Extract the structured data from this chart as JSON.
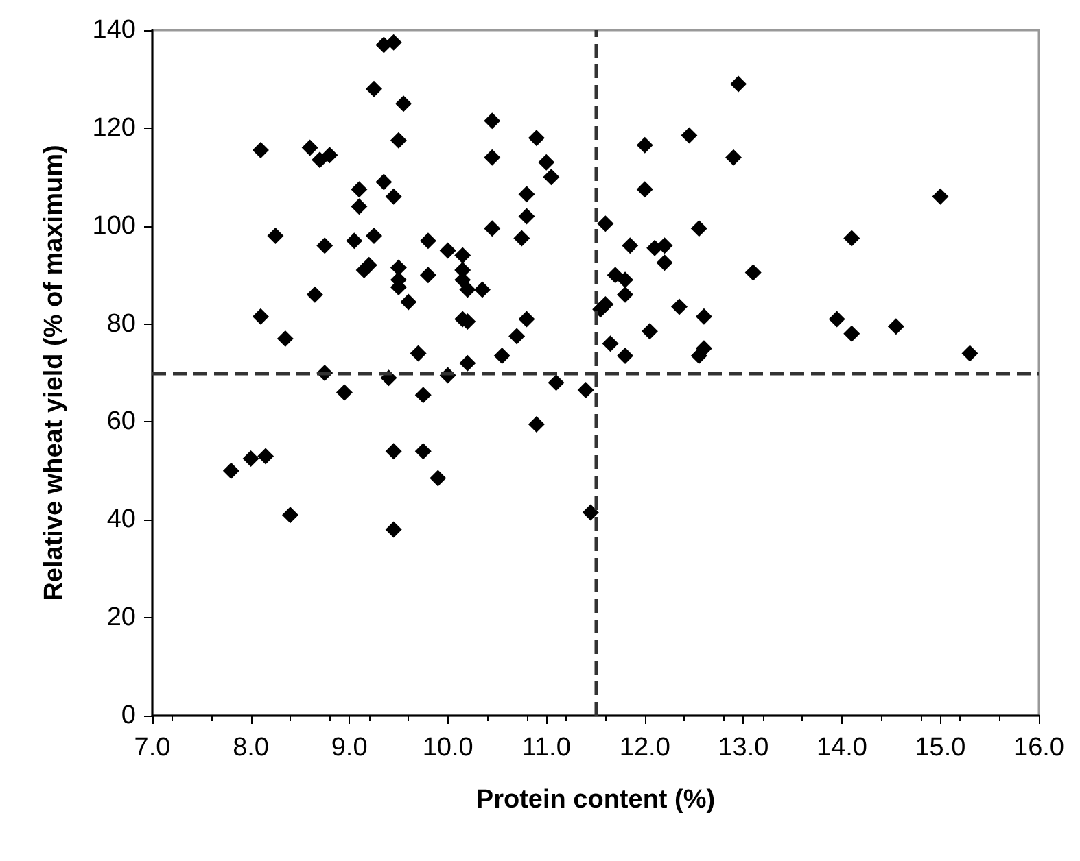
{
  "chart_data": {
    "type": "scatter",
    "xlabel": "Protein content (%)",
    "ylabel": "Relative wheat yield (% of maximum)",
    "x": [
      7.8,
      8.0,
      8.15,
      8.4,
      8.1,
      8.1,
      8.25,
      8.35,
      8.6,
      8.7,
      8.8,
      8.65,
      8.75,
      8.75,
      8.95,
      9.05,
      9.1,
      9.1,
      9.15,
      9.2,
      9.25,
      9.25,
      9.35,
      9.45,
      9.35,
      9.45,
      9.5,
      9.55,
      9.5,
      9.5,
      9.5,
      9.6,
      9.4,
      9.45,
      9.45,
      9.75,
      9.75,
      9.9,
      9.7,
      9.8,
      9.8,
      10.0,
      10.0,
      10.15,
      10.15,
      10.15,
      10.2,
      10.15,
      10.2,
      10.2,
      10.35,
      10.45,
      10.45,
      10.45,
      10.55,
      10.7,
      10.75,
      10.8,
      10.8,
      10.8,
      10.9,
      11.0,
      11.05,
      10.9,
      11.1,
      11.4,
      11.45,
      11.6,
      11.55,
      11.6,
      11.65,
      11.7,
      11.8,
      11.8,
      11.85,
      11.8,
      12.0,
      12.0,
      12.05,
      12.1,
      12.2,
      12.2,
      12.35,
      12.45,
      12.55,
      12.55,
      12.6,
      12.6,
      12.9,
      12.95,
      13.1,
      13.95,
      14.1,
      14.1,
      14.55,
      15.0,
      15.3
    ],
    "series": [
      {
        "color": "#000000",
        "values": [
          50,
          52.5,
          53,
          41,
          81.5,
          115.5,
          98,
          77,
          116,
          113.5,
          114.5,
          86,
          96,
          70,
          66,
          97,
          104,
          107.5,
          91,
          92,
          98,
          128,
          137,
          137.5,
          109,
          106,
          117.5,
          125,
          91.5,
          89,
          87.5,
          84.5,
          69,
          54,
          38,
          65.5,
          54,
          48.5,
          74,
          97,
          90,
          95,
          69.5,
          94,
          91,
          89,
          87,
          81,
          80.5,
          72,
          87,
          121.5,
          114,
          99.5,
          73.5,
          77.5,
          97.5,
          106.5,
          102,
          81,
          118,
          113,
          110,
          59.5,
          68,
          66.5,
          41.5,
          100.5,
          83,
          84,
          76,
          90,
          89,
          86,
          96,
          73.5,
          116.5,
          107.5,
          78.5,
          95.5,
          96,
          92.5,
          83.5,
          118.5,
          99.5,
          73.5,
          75,
          81.5,
          114,
          129,
          90.5,
          81,
          78,
          97.5,
          79.5,
          106,
          74
        ]
      }
    ],
    "xlim": [
      7,
      16
    ],
    "xticks": [
      {
        "value": 7,
        "label": "7.0"
      },
      {
        "value": 8,
        "label": "8.0"
      },
      {
        "value": 9,
        "label": "9.0"
      },
      {
        "value": 10,
        "label": "10.0"
      },
      {
        "value": 11,
        "label": "11.0"
      },
      {
        "value": 12,
        "label": "12.0"
      },
      {
        "value": 13,
        "label": "13.0"
      },
      {
        "value": 14,
        "label": "14.0"
      },
      {
        "value": 15,
        "label": "15.0"
      },
      {
        "value": 16,
        "label": "16.0"
      }
    ],
    "ylim": [
      0,
      140
    ],
    "yticks": [
      0,
      20,
      40,
      60,
      80,
      100,
      120,
      140
    ],
    "ref_lines": [
      {
        "axis": "x",
        "value": 11.5,
        "color": "#333333",
        "line_style": "dashed"
      },
      {
        "axis": "y",
        "value": 70,
        "color": "#333333",
        "line_style": "dashed"
      }
    ],
    "marker": "diamond",
    "grid": false
  }
}
